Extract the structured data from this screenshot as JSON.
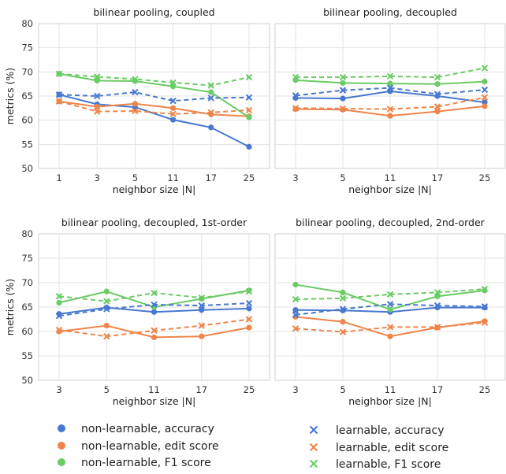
{
  "colors": {
    "accuracy": "#4878cf",
    "edit": "#ee854a",
    "f1": "#6acc64"
  },
  "legend": {
    "items": [
      {
        "label": "non-learnable, accuracy",
        "color": "#4878cf",
        "marker": "circle"
      },
      {
        "label": "non-learnable, edit score",
        "color": "#ee854a",
        "marker": "circle"
      },
      {
        "label": "non-learnable, F1 score",
        "color": "#6acc64",
        "marker": "circle"
      },
      {
        "label": "learnable, accuracy",
        "color": "#4878cf",
        "marker": "x"
      },
      {
        "label": "learnable, edit score",
        "color": "#ee854a",
        "marker": "x"
      },
      {
        "label": "learnable, F1 score",
        "color": "#6acc64",
        "marker": "x"
      }
    ]
  },
  "chart_data": [
    {
      "type": "line",
      "title": "bilinear pooling, coupled",
      "xlabel": "neighbor size |N|",
      "ylabel": "metrics (%)",
      "ylim": [
        50,
        80
      ],
      "yticks": [
        50,
        55,
        60,
        65,
        70,
        75,
        80
      ],
      "categories": [
        "1",
        "3",
        "5",
        "11",
        "17",
        "25"
      ],
      "grid": true,
      "series": [
        {
          "name": "non-learnable, accuracy",
          "metric": "accuracy",
          "style": "solid",
          "values": [
            65.3,
            63.3,
            62.7,
            60.1,
            58.5,
            54.5
          ]
        },
        {
          "name": "non-learnable, edit score",
          "metric": "edit",
          "style": "solid",
          "values": [
            63.9,
            62.8,
            63.4,
            62.5,
            61.2,
            60.8
          ]
        },
        {
          "name": "non-learnable, F1 score",
          "metric": "f1",
          "style": "solid",
          "values": [
            69.6,
            68.2,
            68.1,
            67.0,
            65.8,
            60.6
          ]
        },
        {
          "name": "learnable, accuracy",
          "metric": "accuracy",
          "style": "dashed",
          "values": [
            65.3,
            65.0,
            65.8,
            64.0,
            64.6,
            64.7
          ]
        },
        {
          "name": "learnable, edit score",
          "metric": "edit",
          "style": "dashed",
          "values": [
            63.9,
            61.8,
            61.9,
            61.3,
            61.6,
            62.1
          ]
        },
        {
          "name": "learnable, F1 score",
          "metric": "f1",
          "style": "dashed",
          "values": [
            69.6,
            69.0,
            68.5,
            67.8,
            67.2,
            68.9
          ]
        }
      ]
    },
    {
      "type": "line",
      "title": "bilinear pooling, decoupled",
      "xlabel": "neighbor size |N|",
      "ylabel": "",
      "ylim": [
        50,
        80
      ],
      "yticks": [],
      "categories": [
        "3",
        "5",
        "11",
        "17",
        "25"
      ],
      "grid": true,
      "series": [
        {
          "name": "non-learnable, accuracy",
          "metric": "accuracy",
          "style": "solid",
          "values": [
            64.6,
            64.5,
            66.0,
            65.0,
            63.7
          ]
        },
        {
          "name": "non-learnable, edit score",
          "metric": "edit",
          "style": "solid",
          "values": [
            62.3,
            62.2,
            60.9,
            61.8,
            62.9
          ]
        },
        {
          "name": "non-learnable, F1 score",
          "metric": "f1",
          "style": "solid",
          "values": [
            68.3,
            67.7,
            67.6,
            67.5,
            68.0
          ]
        },
        {
          "name": "learnable, accuracy",
          "metric": "accuracy",
          "style": "dashed",
          "values": [
            65.1,
            66.2,
            66.7,
            65.4,
            66.3
          ]
        },
        {
          "name": "learnable, edit score",
          "metric": "edit",
          "style": "dashed",
          "values": [
            62.5,
            62.4,
            62.3,
            62.8,
            64.7
          ]
        },
        {
          "name": "learnable, F1 score",
          "metric": "f1",
          "style": "dashed",
          "values": [
            68.9,
            68.9,
            69.1,
            68.9,
            70.8
          ]
        }
      ]
    },
    {
      "type": "line",
      "title": "bilinear pooling, decoupled, 1st-order",
      "xlabel": "neighbor size |N|",
      "ylabel": "metrics (%)",
      "ylim": [
        50,
        80
      ],
      "yticks": [
        50,
        55,
        60,
        65,
        70,
        75,
        80
      ],
      "categories": [
        "3",
        "5",
        "11",
        "17",
        "25"
      ],
      "grid": true,
      "series": [
        {
          "name": "non-learnable, accuracy",
          "metric": "accuracy",
          "style": "solid",
          "values": [
            63.6,
            64.9,
            64.0,
            64.4,
            64.7
          ]
        },
        {
          "name": "non-learnable, edit score",
          "metric": "edit",
          "style": "solid",
          "values": [
            60.0,
            61.2,
            58.8,
            59.0,
            60.8
          ]
        },
        {
          "name": "non-learnable, F1 score",
          "metric": "f1",
          "style": "solid",
          "values": [
            65.9,
            68.2,
            65.0,
            66.7,
            68.4
          ]
        },
        {
          "name": "learnable, accuracy",
          "metric": "accuracy",
          "style": "dashed",
          "values": [
            63.2,
            64.6,
            65.5,
            65.3,
            65.8
          ]
        },
        {
          "name": "learnable, edit score",
          "metric": "edit",
          "style": "dashed",
          "values": [
            60.3,
            59.0,
            60.2,
            61.2,
            62.5
          ]
        },
        {
          "name": "learnable, F1 score",
          "metric": "f1",
          "style": "dashed",
          "values": [
            67.2,
            66.2,
            67.9,
            66.9,
            68.2
          ]
        }
      ]
    },
    {
      "type": "line",
      "title": "bilinear pooling, decoupled, 2nd-order",
      "xlabel": "neighbor size |N|",
      "ylabel": "",
      "ylim": [
        50,
        80
      ],
      "yticks": [],
      "categories": [
        "3",
        "5",
        "11",
        "17",
        "25"
      ],
      "grid": true,
      "series": [
        {
          "name": "non-learnable, accuracy",
          "metric": "accuracy",
          "style": "solid",
          "values": [
            64.4,
            64.3,
            64.0,
            64.9,
            64.9
          ]
        },
        {
          "name": "non-learnable, edit score",
          "metric": "edit",
          "style": "solid",
          "values": [
            63.0,
            62.0,
            59.0,
            60.8,
            62.1
          ]
        },
        {
          "name": "non-learnable, F1 score",
          "metric": "f1",
          "style": "solid",
          "values": [
            69.6,
            68.0,
            64.5,
            67.2,
            68.4
          ]
        },
        {
          "name": "learnable, accuracy",
          "metric": "accuracy",
          "style": "dashed",
          "values": [
            63.4,
            64.6,
            65.6,
            65.3,
            65.1
          ]
        },
        {
          "name": "learnable, edit score",
          "metric": "edit",
          "style": "dashed",
          "values": [
            60.6,
            59.9,
            60.9,
            60.9,
            61.8
          ]
        },
        {
          "name": "learnable, F1 score",
          "metric": "f1",
          "style": "dashed",
          "values": [
            66.6,
            66.8,
            67.6,
            68.0,
            68.7
          ]
        }
      ]
    }
  ]
}
